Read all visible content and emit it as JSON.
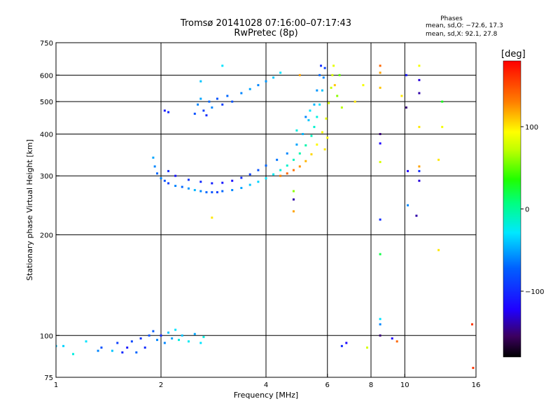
{
  "header": {
    "title_line1": "Tromsø 20141028 07:16:00–07:17:43",
    "title_line2": "RwPretec (8p)"
  },
  "stats": {
    "title": "Phases",
    "line_o": "mean, sd,O: −72.6, 17.3",
    "line_x": "mean, sd,X:  92.1, 27.8"
  },
  "colorbar": {
    "unit": "[deg]",
    "range": [
      -180,
      180
    ],
    "ticks": [
      {
        "v": 100,
        "label": "100"
      },
      {
        "v": 0,
        "label": "0"
      },
      {
        "v": -100,
        "label": "−100"
      }
    ]
  },
  "chart_data": {
    "type": "scatter",
    "xlabel": "Frequency [MHz]",
    "ylabel": "Stationary phase Virtual Height [km]",
    "xscale": "log",
    "yscale": "log",
    "xlim": [
      1,
      16
    ],
    "ylim": [
      75,
      750
    ],
    "x_ticks": [
      {
        "v": 1,
        "label": "1"
      },
      {
        "v": 2,
        "label": "2"
      },
      {
        "v": 4,
        "label": "4"
      },
      {
        "v": 6,
        "label": "6"
      },
      {
        "v": 8,
        "label": "8"
      },
      {
        "v": 10,
        "label": "10"
      },
      {
        "v": 16,
        "label": "16"
      }
    ],
    "y_ticks": [
      {
        "v": 75,
        "label": "75"
      },
      {
        "v": 100,
        "label": "100"
      },
      {
        "v": 200,
        "label": "200"
      },
      {
        "v": 300,
        "label": "300"
      },
      {
        "v": 400,
        "label": "400"
      },
      {
        "v": 500,
        "label": "500"
      },
      {
        "v": 600,
        "label": "600"
      },
      {
        "v": 750,
        "label": "750"
      }
    ],
    "x_gridlines": [
      2,
      4,
      6,
      8,
      10
    ],
    "y_gridlines": [
      100,
      200,
      300,
      400,
      500,
      600
    ],
    "grid": true,
    "color_encoding": "phase [deg]",
    "points": [
      {
        "f": 1.0,
        "h": 93,
        "p": -40
      },
      {
        "f": 1.05,
        "h": 93,
        "p": -35
      },
      {
        "f": 1.12,
        "h": 88,
        "p": -20
      },
      {
        "f": 1.22,
        "h": 96,
        "p": -30
      },
      {
        "f": 1.32,
        "h": 90,
        "p": -60
      },
      {
        "f": 1.35,
        "h": 92,
        "p": -80
      },
      {
        "f": 1.45,
        "h": 90,
        "p": -40
      },
      {
        "f": 1.5,
        "h": 95,
        "p": -90
      },
      {
        "f": 1.55,
        "h": 89,
        "p": -100
      },
      {
        "f": 1.6,
        "h": 92,
        "p": -110
      },
      {
        "f": 1.65,
        "h": 96,
        "p": -85
      },
      {
        "f": 1.7,
        "h": 89,
        "p": -70
      },
      {
        "f": 1.75,
        "h": 98,
        "p": -95
      },
      {
        "f": 1.8,
        "h": 92,
        "p": -100
      },
      {
        "f": 1.85,
        "h": 100,
        "p": -80
      },
      {
        "f": 1.9,
        "h": 103,
        "p": -75
      },
      {
        "f": 1.95,
        "h": 97,
        "p": -60
      },
      {
        "f": 2.0,
        "h": 100,
        "p": -100
      },
      {
        "f": 2.05,
        "h": 95,
        "p": -60
      },
      {
        "f": 2.1,
        "h": 102,
        "p": -40
      },
      {
        "f": 2.15,
        "h": 98,
        "p": -50
      },
      {
        "f": 2.2,
        "h": 104,
        "p": -30
      },
      {
        "f": 2.25,
        "h": 97,
        "p": -20
      },
      {
        "f": 2.3,
        "h": 100,
        "p": -40
      },
      {
        "f": 2.4,
        "h": 96,
        "p": -25
      },
      {
        "f": 2.5,
        "h": 101,
        "p": -50
      },
      {
        "f": 2.6,
        "h": 95,
        "p": -30
      },
      {
        "f": 2.65,
        "h": 99,
        "p": -20
      },
      {
        "f": 1.9,
        "h": 340,
        "p": -50
      },
      {
        "f": 1.92,
        "h": 320,
        "p": -60
      },
      {
        "f": 1.95,
        "h": 305,
        "p": -70
      },
      {
        "f": 2.0,
        "h": 295,
        "p": -60
      },
      {
        "f": 2.05,
        "h": 290,
        "p": -80
      },
      {
        "f": 2.1,
        "h": 285,
        "p": -90
      },
      {
        "f": 2.2,
        "h": 280,
        "p": -60
      },
      {
        "f": 2.3,
        "h": 278,
        "p": -70
      },
      {
        "f": 2.4,
        "h": 275,
        "p": -55
      },
      {
        "f": 2.5,
        "h": 272,
        "p": -45
      },
      {
        "f": 2.6,
        "h": 270,
        "p": -60
      },
      {
        "f": 2.7,
        "h": 268,
        "p": -70
      },
      {
        "f": 2.8,
        "h": 268,
        "p": -80
      },
      {
        "f": 2.9,
        "h": 268,
        "p": -90
      },
      {
        "f": 3.0,
        "h": 270,
        "p": -70
      },
      {
        "f": 3.2,
        "h": 272,
        "p": -60
      },
      {
        "f": 3.4,
        "h": 276,
        "p": -50
      },
      {
        "f": 3.6,
        "h": 282,
        "p": -40
      },
      {
        "f": 3.8,
        "h": 288,
        "p": -35
      },
      {
        "f": 4.0,
        "h": 295,
        "p": -30
      },
      {
        "f": 4.2,
        "h": 303,
        "p": -25
      },
      {
        "f": 4.4,
        "h": 312,
        "p": -20
      },
      {
        "f": 4.6,
        "h": 322,
        "p": -15
      },
      {
        "f": 4.8,
        "h": 335,
        "p": -10
      },
      {
        "f": 5.0,
        "h": 350,
        "p": -5
      },
      {
        "f": 5.2,
        "h": 370,
        "p": -5
      },
      {
        "f": 5.4,
        "h": 395,
        "p": -10
      },
      {
        "f": 5.5,
        "h": 420,
        "p": -15
      },
      {
        "f": 5.6,
        "h": 450,
        "p": -20
      },
      {
        "f": 5.7,
        "h": 490,
        "p": -30
      },
      {
        "f": 5.8,
        "h": 540,
        "p": -40
      },
      {
        "f": 5.85,
        "h": 590,
        "p": -60
      },
      {
        "f": 5.9,
        "h": 630,
        "p": -90
      },
      {
        "f": 2.1,
        "h": 310,
        "p": -100
      },
      {
        "f": 2.2,
        "h": 300,
        "p": -110
      },
      {
        "f": 2.4,
        "h": 292,
        "p": -95
      },
      {
        "f": 2.6,
        "h": 288,
        "p": -100
      },
      {
        "f": 2.8,
        "h": 285,
        "p": -105
      },
      {
        "f": 3.0,
        "h": 286,
        "p": -110
      },
      {
        "f": 3.2,
        "h": 290,
        "p": -115
      },
      {
        "f": 3.4,
        "h": 296,
        "p": -100
      },
      {
        "f": 3.6,
        "h": 303,
        "p": -90
      },
      {
        "f": 3.8,
        "h": 312,
        "p": -80
      },
      {
        "f": 4.0,
        "h": 322,
        "p": -70
      },
      {
        "f": 4.3,
        "h": 335,
        "p": -65
      },
      {
        "f": 4.6,
        "h": 350,
        "p": -60
      },
      {
        "f": 4.9,
        "h": 372,
        "p": -50
      },
      {
        "f": 5.1,
        "h": 400,
        "p": -45
      },
      {
        "f": 5.3,
        "h": 440,
        "p": -40
      },
      {
        "f": 5.5,
        "h": 490,
        "p": -45
      },
      {
        "f": 5.6,
        "h": 540,
        "p": -55
      },
      {
        "f": 5.7,
        "h": 600,
        "p": -70
      },
      {
        "f": 5.75,
        "h": 640,
        "p": -100
      },
      {
        "f": 4.4,
        "h": 300,
        "p": 130
      },
      {
        "f": 4.6,
        "h": 305,
        "p": 140
      },
      {
        "f": 4.8,
        "h": 312,
        "p": 135
      },
      {
        "f": 5.0,
        "h": 320,
        "p": 125
      },
      {
        "f": 5.2,
        "h": 332,
        "p": 115
      },
      {
        "f": 5.4,
        "h": 348,
        "p": 105
      },
      {
        "f": 5.6,
        "h": 372,
        "p": 95
      },
      {
        "f": 5.8,
        "h": 405,
        "p": 90
      },
      {
        "f": 5.95,
        "h": 445,
        "p": 85
      },
      {
        "f": 6.05,
        "h": 495,
        "p": 80
      },
      {
        "f": 6.15,
        "h": 550,
        "p": 75
      },
      {
        "f": 6.2,
        "h": 600,
        "p": 80
      },
      {
        "f": 6.25,
        "h": 640,
        "p": 85
      },
      {
        "f": 6.3,
        "h": 560,
        "p": 110
      },
      {
        "f": 6.4,
        "h": 520,
        "p": 60
      },
      {
        "f": 6.5,
        "h": 600,
        "p": 50
      },
      {
        "f": 6.6,
        "h": 480,
        "p": 70
      },
      {
        "f": 5.9,
        "h": 360,
        "p": 100
      },
      {
        "f": 6.0,
        "h": 390,
        "p": 95
      },
      {
        "f": 2.5,
        "h": 460,
        "p": -80
      },
      {
        "f": 2.55,
        "h": 490,
        "p": -60
      },
      {
        "f": 2.6,
        "h": 510,
        "p": -50
      },
      {
        "f": 2.65,
        "h": 470,
        "p": -90
      },
      {
        "f": 2.7,
        "h": 455,
        "p": -100
      },
      {
        "f": 2.75,
        "h": 500,
        "p": -70
      },
      {
        "f": 2.8,
        "h": 480,
        "p": -60
      },
      {
        "f": 2.9,
        "h": 510,
        "p": -80
      },
      {
        "f": 3.0,
        "h": 490,
        "p": -90
      },
      {
        "f": 3.1,
        "h": 520,
        "p": -70
      },
      {
        "f": 3.2,
        "h": 500,
        "p": -80
      },
      {
        "f": 3.4,
        "h": 530,
        "p": -60
      },
      {
        "f": 3.6,
        "h": 545,
        "p": -50
      },
      {
        "f": 3.8,
        "h": 560,
        "p": -60
      },
      {
        "f": 4.0,
        "h": 575,
        "p": -55
      },
      {
        "f": 4.2,
        "h": 590,
        "p": -40
      },
      {
        "f": 4.4,
        "h": 610,
        "p": -30
      },
      {
        "f": 2.05,
        "h": 470,
        "p": -110
      },
      {
        "f": 2.1,
        "h": 465,
        "p": -100
      },
      {
        "f": 2.6,
        "h": 575,
        "p": -40
      },
      {
        "f": 3.0,
        "h": 640,
        "p": -30
      },
      {
        "f": 2.8,
        "h": 225,
        "p": 100
      },
      {
        "f": 4.8,
        "h": 235,
        "p": 120
      },
      {
        "f": 4.8,
        "h": 255,
        "p": -140
      },
      {
        "f": 4.8,
        "h": 270,
        "p": 60
      },
      {
        "f": 5.0,
        "h": 600,
        "p": 120
      },
      {
        "f": 7.2,
        "h": 500,
        "p": 100
      },
      {
        "f": 7.6,
        "h": 560,
        "p": 90
      },
      {
        "f": 8.5,
        "h": 640,
        "p": 140
      },
      {
        "f": 8.5,
        "h": 610,
        "p": 120
      },
      {
        "f": 8.5,
        "h": 550,
        "p": 110
      },
      {
        "f": 8.5,
        "h": 400,
        "p": -150
      },
      {
        "f": 8.5,
        "h": 375,
        "p": -120
      },
      {
        "f": 8.5,
        "h": 330,
        "p": 80
      },
      {
        "f": 8.5,
        "h": 222,
        "p": -100
      },
      {
        "f": 8.5,
        "h": 175,
        "p": 20
      },
      {
        "f": 8.5,
        "h": 112,
        "p": -30
      },
      {
        "f": 8.5,
        "h": 108,
        "p": -60
      },
      {
        "f": 8.5,
        "h": 100,
        "p": -150
      },
      {
        "f": 9.2,
        "h": 98,
        "p": -120
      },
      {
        "f": 9.5,
        "h": 96,
        "p": 140
      },
      {
        "f": 9.8,
        "h": 520,
        "p": 100
      },
      {
        "f": 10.1,
        "h": 480,
        "p": -150
      },
      {
        "f": 10.2,
        "h": 310,
        "p": -120
      },
      {
        "f": 10.2,
        "h": 245,
        "p": -60
      },
      {
        "f": 10.1,
        "h": 600,
        "p": -110
      },
      {
        "f": 11.0,
        "h": 640,
        "p": 90
      },
      {
        "f": 11.0,
        "h": 580,
        "p": -130
      },
      {
        "f": 11.0,
        "h": 530,
        "p": -140
      },
      {
        "f": 11.0,
        "h": 420,
        "p": 100
      },
      {
        "f": 11.0,
        "h": 320,
        "p": 120
      },
      {
        "f": 11.0,
        "h": 310,
        "p": -100
      },
      {
        "f": 11.0,
        "h": 290,
        "p": -130
      },
      {
        "f": 10.8,
        "h": 228,
        "p": -140
      },
      {
        "f": 12.8,
        "h": 500,
        "p": 30
      },
      {
        "f": 12.8,
        "h": 420,
        "p": 90
      },
      {
        "f": 12.5,
        "h": 335,
        "p": 100
      },
      {
        "f": 12.5,
        "h": 180,
        "p": 100
      },
      {
        "f": 15.6,
        "h": 108,
        "p": 160
      },
      {
        "f": 15.7,
        "h": 80,
        "p": 160
      },
      {
        "f": 6.6,
        "h": 93,
        "p": -100
      },
      {
        "f": 6.8,
        "h": 95,
        "p": -120
      },
      {
        "f": 7.8,
        "h": 92,
        "p": 80
      },
      {
        "f": 5.2,
        "h": 450,
        "p": -60
      },
      {
        "f": 5.35,
        "h": 470,
        "p": -30
      },
      {
        "f": 4.9,
        "h": 410,
        "p": -20
      }
    ]
  }
}
